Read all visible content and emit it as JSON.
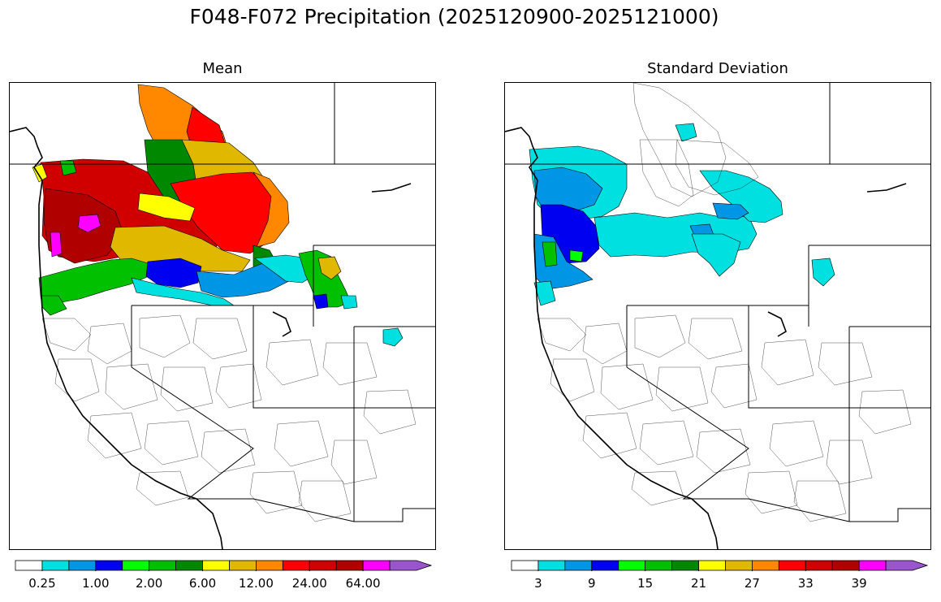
{
  "title": "F048-F072 Precipitation (2025120900-2025121000)",
  "panels": [
    {
      "title": "Mean",
      "colorbar": {
        "colors": [
          "#ffffff",
          "#00e0e0",
          "#0096e6",
          "#0000f0",
          "#00ff00",
          "#00c000",
          "#008800",
          "#ffff00",
          "#e0b800",
          "#ff8800",
          "#ff0000",
          "#d00000",
          "#b00000",
          "#ff00ff",
          "#9955cc"
        ],
        "tick_labels": [
          "0.25",
          "1.00",
          "2.00",
          "6.00",
          "12.00",
          "24.00",
          "64.00"
        ],
        "extend": "max"
      }
    },
    {
      "title": "Standard Deviation",
      "colorbar": {
        "colors": [
          "#ffffff",
          "#00e0e0",
          "#0096e6",
          "#0000f0",
          "#00ff00",
          "#00c000",
          "#008800",
          "#ffff00",
          "#e0b800",
          "#ff8800",
          "#ff0000",
          "#d00000",
          "#b00000",
          "#ff00ff",
          "#9955cc"
        ],
        "tick_labels": [
          "3",
          "9",
          "15",
          "21",
          "27",
          "33",
          "39"
        ],
        "extend": "max"
      }
    }
  ]
}
